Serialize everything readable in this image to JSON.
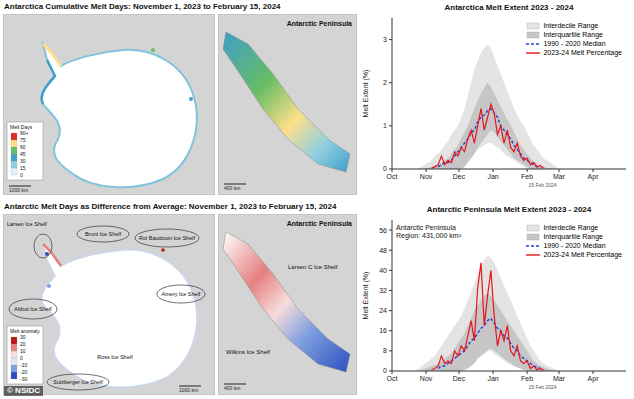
{
  "chart_data": [
    {
      "type": "line",
      "title": "Antarctica Melt Extent 2023 - 2024",
      "y_label": "Melt Extent (%)",
      "legend": "upper right",
      "grid": false,
      "x": [
        21,
        24,
        27,
        30,
        33,
        36,
        39,
        42,
        45,
        48,
        51,
        54,
        57,
        60,
        63,
        66,
        69,
        72,
        75,
        78,
        81,
        84,
        87,
        90,
        93,
        96,
        99,
        102,
        105,
        108,
        111,
        114,
        117,
        120,
        123,
        126,
        129,
        132,
        135,
        138,
        141,
        144,
        147,
        150
      ],
      "xlim": [
        0,
        213
      ],
      "xticks": [
        {
          "value": 0,
          "label": "Oct"
        },
        {
          "value": 31,
          "label": "Nov"
        },
        {
          "value": 61,
          "label": "Dec"
        },
        {
          "value": 92,
          "label": "Jan"
        },
        {
          "value": 123,
          "label": "Feb"
        },
        {
          "value": 152,
          "label": "Mar"
        },
        {
          "value": 183,
          "label": "Apr"
        }
      ],
      "ylim": [
        0,
        3.5
      ],
      "yticks": [
        0,
        1,
        2,
        3
      ],
      "annotations": [
        {
          "text": "15 Feb 2024",
          "x": 137
        }
      ],
      "series": [
        {
          "name": "Interdecile Range",
          "type": "area",
          "color": "#e4e4e4",
          "lower": [
            0,
            0,
            0,
            0,
            0,
            0,
            0,
            0,
            0,
            0,
            0,
            0,
            0,
            0.05,
            0.1,
            0.2,
            0.3,
            0.35,
            0.4,
            0.45,
            0.5,
            0.55,
            0.6,
            0.6,
            0.55,
            0.5,
            0.45,
            0.35,
            0.3,
            0.25,
            0.2,
            0.15,
            0.1,
            0.05,
            0,
            0,
            0,
            0,
            0,
            0,
            0,
            0,
            0,
            0
          ],
          "upper": [
            0,
            0.02,
            0.05,
            0.1,
            0.15,
            0.2,
            0.3,
            0.35,
            0.45,
            0.55,
            0.65,
            0.8,
            0.9,
            1.0,
            1.2,
            1.4,
            1.7,
            2.0,
            2.3,
            2.5,
            2.7,
            2.8,
            2.9,
            2.8,
            2.6,
            2.4,
            2.2,
            2.0,
            1.8,
            1.6,
            1.4,
            1.25,
            1.1,
            1.0,
            0.85,
            0.7,
            0.55,
            0.45,
            0.35,
            0.25,
            0.2,
            0.15,
            0.1,
            0.05
          ]
        },
        {
          "name": "Interquartile Range",
          "type": "area",
          "color": "#c6c6c6",
          "lower": [
            0,
            0,
            0,
            0,
            0,
            0,
            0,
            0,
            0,
            0,
            0,
            0,
            0,
            0,
            0,
            0.05,
            0.15,
            0.25,
            0.35,
            0.5,
            0.6,
            0.7,
            0.8,
            0.9,
            0.85,
            0.75,
            0.65,
            0.55,
            0.45,
            0.35,
            0.25,
            0.2,
            0.15,
            0.1,
            0.05,
            0,
            0,
            0,
            0,
            0,
            0,
            0,
            0,
            0
          ],
          "upper": [
            0,
            0,
            0.01,
            0.02,
            0.03,
            0.05,
            0.08,
            0.1,
            0.15,
            0.2,
            0.25,
            0.35,
            0.45,
            0.55,
            0.7,
            0.85,
            1.0,
            1.2,
            1.4,
            1.6,
            1.75,
            1.9,
            2.0,
            1.9,
            1.75,
            1.6,
            1.45,
            1.3,
            1.15,
            1.0,
            0.85,
            0.7,
            0.55,
            0.45,
            0.35,
            0.25,
            0.18,
            0.12,
            0.08,
            0.05,
            0.03,
            0.02,
            0.01,
            0
          ]
        },
        {
          "name": "1990 - 2020 Median",
          "type": "line",
          "line_style": "dashed",
          "color": "#1f3fd6",
          "values": [
            null,
            null,
            null,
            null,
            null,
            null,
            null,
            0.05,
            0.1,
            0.15,
            0.15,
            0.2,
            0.3,
            0.4,
            0.5,
            0.6,
            0.7,
            0.85,
            0.9,
            1.1,
            1.2,
            1.25,
            1.35,
            1.4,
            1.3,
            1.2,
            1.0,
            0.9,
            0.8,
            0.7,
            0.55,
            0.45,
            0.35,
            0.25,
            0.2,
            0.15,
            0.1,
            0.05,
            0.03,
            null,
            null,
            null,
            null,
            null
          ]
        },
        {
          "name": "2023-24 Melt Percentage",
          "type": "line",
          "line_style": "solid",
          "color": "#e8141b",
          "values": [
            null,
            null,
            null,
            null,
            null,
            0.02,
            0.05,
            0.1,
            0.3,
            0.1,
            0.2,
            0.15,
            0.4,
            0.3,
            0.5,
            0.4,
            0.7,
            0.9,
            0.6,
            1.0,
            1.4,
            0.9,
            1.2,
            1.5,
            1.3,
            0.8,
            1.0,
            0.6,
            0.9,
            0.5,
            0.4,
            0.6,
            0.3,
            0.2,
            0.25,
            0.1,
            0.15,
            0.05,
            0.08,
            0.02,
            null,
            null,
            null,
            null
          ]
        }
      ]
    },
    {
      "type": "line",
      "title": "Antarctic Peninsula Melt Extent 2023 - 2024",
      "y_label": "Melt Extent (%)",
      "legend": "upper right",
      "grid": false,
      "x": [
        21,
        24,
        27,
        30,
        33,
        36,
        39,
        42,
        45,
        48,
        51,
        54,
        57,
        60,
        63,
        66,
        69,
        72,
        75,
        78,
        81,
        84,
        87,
        90,
        93,
        96,
        99,
        102,
        105,
        108,
        111,
        114,
        117,
        120,
        123,
        126,
        129,
        132,
        135,
        138,
        141,
        144,
        147,
        150
      ],
      "xlim": [
        0,
        213
      ],
      "xticks": [
        {
          "value": 0,
          "label": "Oct"
        },
        {
          "value": 31,
          "label": "Nov"
        },
        {
          "value": 61,
          "label": "Dec"
        },
        {
          "value": 92,
          "label": "Jan"
        },
        {
          "value": 123,
          "label": "Feb"
        },
        {
          "value": 152,
          "label": "Mar"
        },
        {
          "value": 183,
          "label": "Apr"
        }
      ],
      "ylim": [
        0,
        60
      ],
      "yticks": [
        0,
        8,
        16,
        24,
        32,
        40,
        48,
        56
      ],
      "annotations": [
        {
          "text": "15 Feb 2024",
          "x": 137
        },
        {
          "text": "Antarctic Peninsula Region: 431,000 km²"
        }
      ],
      "series": [
        {
          "name": "Interdecile Range",
          "type": "area",
          "color": "#e4e4e4",
          "lower": [
            0,
            0,
            0,
            0,
            0,
            0,
            0,
            0,
            0,
            0,
            0,
            0,
            0,
            0.5,
            1,
            2,
            3,
            4,
            5,
            6,
            7,
            8,
            8,
            8,
            7,
            6,
            5,
            4,
            3,
            2.5,
            2,
            1.5,
            1,
            0.5,
            0,
            0,
            0,
            0,
            0,
            0,
            0,
            0,
            0,
            0
          ],
          "upper": [
            0,
            1,
            2,
            3,
            4,
            5,
            6,
            8,
            10,
            12,
            14,
            16,
            18,
            20,
            22,
            25,
            28,
            31,
            35,
            38,
            42,
            44,
            46,
            45,
            43,
            40,
            37,
            34,
            31,
            28,
            25,
            22,
            19,
            16,
            13,
            10,
            8,
            6,
            4,
            3,
            2,
            1.5,
            1,
            0.5
          ]
        },
        {
          "name": "Interquartile Range",
          "type": "area",
          "color": "#c6c6c6",
          "lower": [
            0,
            0,
            0,
            0,
            0,
            0,
            0,
            0,
            0,
            0,
            0,
            0,
            0,
            0,
            0,
            0.5,
            1,
            2,
            3,
            5,
            6,
            7,
            8,
            9,
            8,
            7,
            6,
            5,
            4,
            3,
            2,
            1.5,
            1,
            0.5,
            0.2,
            0,
            0,
            0,
            0,
            0,
            0,
            0,
            0,
            0
          ],
          "upper": [
            0,
            0,
            0.5,
            1,
            1.5,
            2,
            2.5,
            3,
            4,
            5,
            6,
            7,
            9,
            11,
            13,
            15,
            18,
            21,
            24,
            26,
            28,
            30,
            31,
            30,
            28,
            26,
            24,
            22,
            20,
            18,
            16,
            14,
            12,
            10,
            8,
            6,
            4,
            3,
            2,
            1.5,
            1,
            0.5,
            0.2,
            0
          ]
        },
        {
          "name": "1990 - 2020 Median",
          "type": "line",
          "line_style": "dashed",
          "color": "#1f3fd6",
          "values": [
            null,
            null,
            null,
            null,
            null,
            null,
            null,
            1,
            2,
            2,
            3,
            4,
            5,
            6,
            7,
            8,
            10,
            12,
            13,
            15,
            17,
            18,
            20,
            21,
            19,
            17,
            16,
            14,
            13,
            11,
            9,
            8,
            6,
            5,
            4,
            3,
            2,
            1.5,
            1,
            null,
            null,
            null,
            null,
            null
          ]
        },
        {
          "name": "2023-24 Melt Percentage",
          "type": "line",
          "line_style": "solid",
          "color": "#e8141b",
          "values": [
            null,
            null,
            null,
            null,
            null,
            0.5,
            1,
            2,
            6,
            3,
            4,
            3,
            8,
            6,
            10,
            8,
            14,
            20,
            12,
            33,
            43,
            18,
            30,
            40,
            22,
            10,
            16,
            12,
            18,
            8,
            6,
            10,
            4,
            3,
            4,
            1,
            2,
            0.5,
            1,
            0.3,
            null,
            null,
            null,
            null
          ]
        }
      ]
    }
  ],
  "maps": {
    "top": {
      "title": "Antarctica Cumulative Melt Days: November 1, 2023 to February 15, 2024",
      "inset_title": "Antarctic Peninsula",
      "colorbar_label": "Melt Days",
      "colorbar_ticks": [
        "0",
        "15",
        "30",
        "45",
        "60",
        "75",
        "90+"
      ],
      "scale_bars": [
        "1000 km",
        "400 km"
      ]
    },
    "bottom": {
      "title": "Antarctic Melt Days as Difference from Average: November 1, 2023 to February 15, 2024",
      "inset_title": "Antarctic Peninsula",
      "colorbar_label": "Melt anomaly",
      "colorbar_ticks": [
        "-30",
        "-20",
        "-10",
        "0",
        "10",
        "20",
        "30"
      ],
      "labels": [
        "Larsen Ice Shelf",
        "Brunt Ice Shelf",
        "Roi Baudouin Ice Shelf",
        "Amery Ice Shelf",
        "Abbot Ice Shelf",
        "Ross Ice Shelf",
        "Sulzberger Ice Shelf"
      ],
      "inset_labels": [
        "Larsen C Ice Shelf",
        "Wilkins Ice Shelf"
      ],
      "scale_bars": [
        "1000 km",
        "400 km"
      ]
    }
  },
  "credit": "© NSIDC"
}
